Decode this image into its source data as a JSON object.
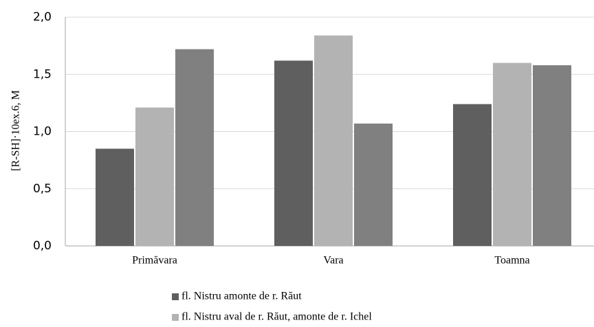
{
  "chart_data": {
    "type": "bar",
    "y_label": "[R-SH]·10ex.6, M",
    "categories": [
      "Primăvara",
      "Vara",
      "Toamna"
    ],
    "series": [
      {
        "name": "fl. Nistru amonte de r. Răut",
        "color": "#5f5f5f",
        "values": [
          0.85,
          1.62,
          1.24
        ]
      },
      {
        "name": "fl. Nistru aval de r. Răut, amonte de r. Ichel",
        "color": "#b3b3b3",
        "values": [
          1.21,
          1.84,
          1.6
        ]
      },
      {
        "color": "#808080",
        "values": [
          1.72,
          1.07,
          1.58
        ]
      }
    ],
    "ylim": [
      0,
      2
    ],
    "yticks": [
      {
        "value": 0,
        "label": "0,0"
      },
      {
        "value": 0.5,
        "label": "0,5"
      },
      {
        "value": 1,
        "label": "1,0"
      },
      {
        "value": 1.5,
        "label": "1,5"
      },
      {
        "value": 2,
        "label": "2,0"
      }
    ],
    "grid": true
  }
}
